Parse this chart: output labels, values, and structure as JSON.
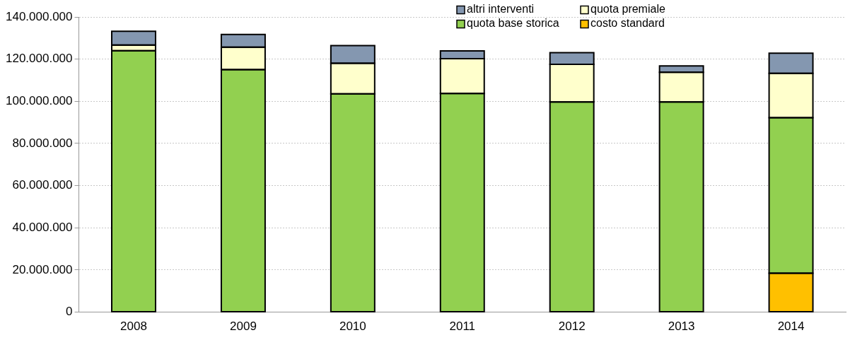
{
  "chart_data": {
    "type": "bar",
    "stacked": true,
    "categories": [
      "2008",
      "2009",
      "2010",
      "2011",
      "2012",
      "2013",
      "2014"
    ],
    "series": [
      {
        "name": "costo standard",
        "color": "#ffc000",
        "values": [
          null,
          null,
          null,
          null,
          null,
          null,
          18500000
        ]
      },
      {
        "name": "quota base storica",
        "color": "#92d050",
        "values": [
          124000000,
          115000000,
          103500000,
          103700000,
          99700000,
          99700000,
          73700000
        ]
      },
      {
        "name": "quota premiale",
        "color": "#ffffcc",
        "values": [
          2700000,
          10700000,
          14500000,
          16500000,
          17800000,
          14100000,
          21100000
        ]
      },
      {
        "name": "altri interventi",
        "color": "#8497b0",
        "values": [
          6500000,
          6000000,
          8400000,
          3700000,
          5600000,
          3000000,
          9500000
        ]
      }
    ],
    "ylim": [
      0,
      140000000
    ],
    "yticks": [
      {
        "value": 0,
        "label": "0"
      },
      {
        "value": 20000000,
        "label": "20.000.000"
      },
      {
        "value": 40000000,
        "label": "40.000.000"
      },
      {
        "value": 60000000,
        "label": "60.000.000"
      },
      {
        "value": 80000000,
        "label": "80.000.000"
      },
      {
        "value": 100000000,
        "label": "100.000.000"
      },
      {
        "value": 120000000,
        "label": "120.000.000"
      },
      {
        "value": 140000000,
        "label": "140.000.000"
      }
    ],
    "grid": "y",
    "legend": "top right"
  }
}
